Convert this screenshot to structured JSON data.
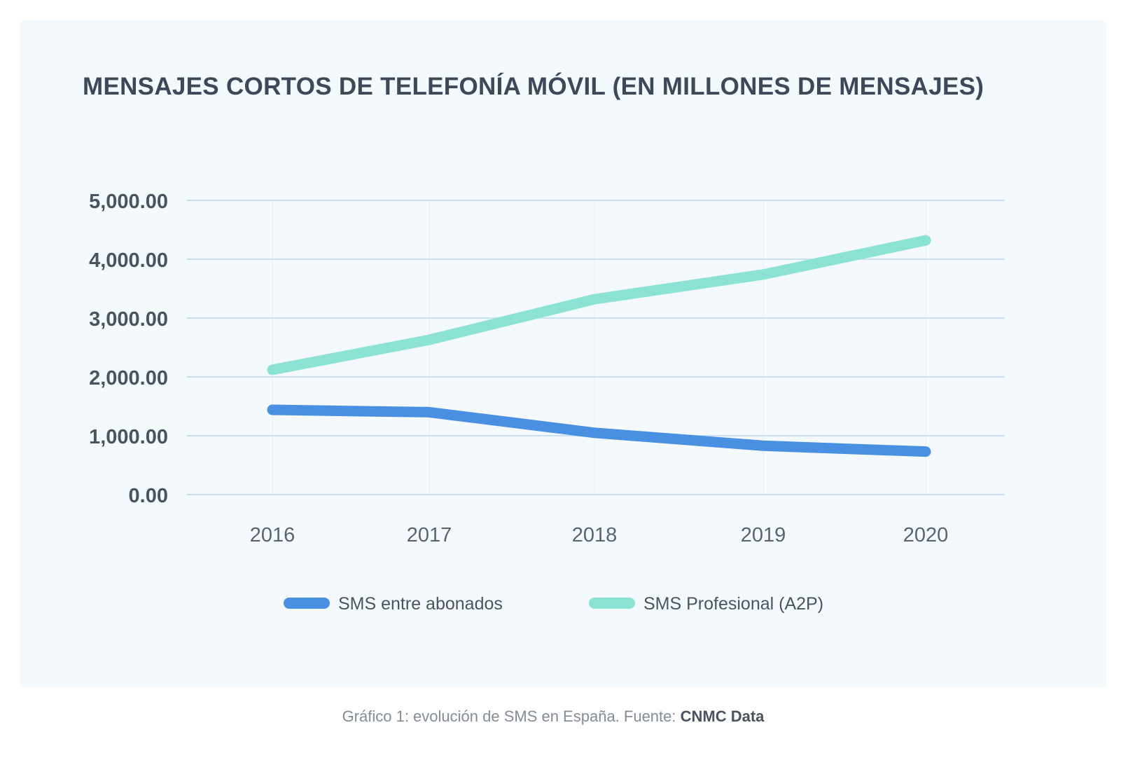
{
  "chart_data": {
    "type": "line",
    "title": "MENSAJES CORTOS DE TELEFONÍA MÓVIL (EN MILLONES DE MENSAJES)",
    "categories": [
      "2016",
      "2017",
      "2018",
      "2019",
      "2020"
    ],
    "series": [
      {
        "name": "SMS entre abonados",
        "color": "#4a90e2",
        "values": [
          1440,
          1400,
          1050,
          830,
          730
        ]
      },
      {
        "name": "SMS Profesional (A2P)",
        "color": "#8ce3d4",
        "values": [
          2120,
          2630,
          3320,
          3740,
          4320
        ]
      }
    ],
    "yticks": [
      "0.00",
      "1,000.00",
      "2,000.00",
      "3,000.00",
      "4,000.00",
      "5,000.00"
    ],
    "ylim": [
      0,
      5000
    ],
    "grid": true,
    "legend": "bottom"
  },
  "caption": {
    "text": "Gráfico 1: evolución de SMS en España. Fuente: ",
    "source": "CNMC Data"
  }
}
